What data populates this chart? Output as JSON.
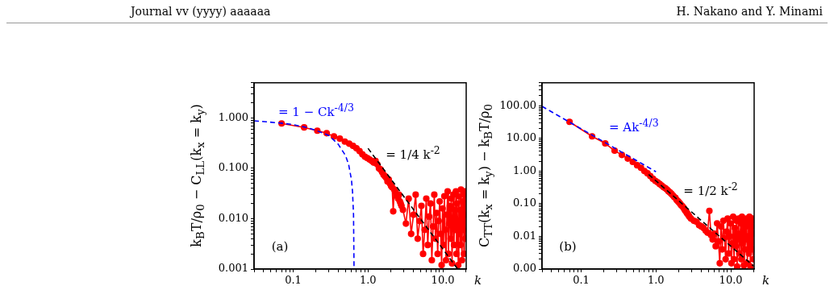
{
  "chart_data": [
    {
      "type": "other",
      "annotations": [
        "Journal vv (yyyy) aaaaaa",
        "H. Nakano and Y. Minami"
      ]
    },
    {
      "type": "line",
      "xlabel": "k",
      "ylabel": "k$_{B}$T/ρ$_{0}$ − C$_{LL}$(k$_{x}$ = k$_{y}$)",
      "log": "xy",
      "xlim": [
        0.03,
        20.5
      ],
      "ylim": [
        0.001,
        5
      ],
      "xticks": [
        {
          "value": 0.03,
          "label": null
        },
        {
          "value": 0.04,
          "label": null
        },
        {
          "value": 0.05,
          "label": null
        },
        {
          "value": 0.06,
          "label": null
        },
        {
          "value": 0.07,
          "label": null
        },
        {
          "value": 0.08,
          "label": null
        },
        {
          "value": 0.09,
          "label": null
        },
        {
          "value": 0.1,
          "label": "0.1"
        },
        {
          "value": 0.2,
          "label": null
        },
        {
          "value": 0.3,
          "label": null
        },
        {
          "value": 0.4,
          "label": null
        },
        {
          "value": 0.5,
          "label": null
        },
        {
          "value": 0.6,
          "label": null
        },
        {
          "value": 0.7,
          "label": null
        },
        {
          "value": 0.8,
          "label": null
        },
        {
          "value": 0.9,
          "label": null
        },
        {
          "value": 1,
          "label": "1.0"
        },
        {
          "value": 2,
          "label": null
        },
        {
          "value": 3,
          "label": null
        },
        {
          "value": 4,
          "label": null
        },
        {
          "value": 5,
          "label": null
        },
        {
          "value": 6,
          "label": null
        },
        {
          "value": 7,
          "label": null
        },
        {
          "value": 8,
          "label": null
        },
        {
          "value": 9,
          "label": null
        },
        {
          "value": 10,
          "label": "10.0"
        },
        {
          "value": 20,
          "label": null
        }
      ],
      "yticks": [
        {
          "value": 0.001,
          "label": "0.001"
        },
        {
          "value": 0.002,
          "label": null
        },
        {
          "value": 0.003,
          "label": null
        },
        {
          "value": 0.004,
          "label": null
        },
        {
          "value": 0.005,
          "label": null
        },
        {
          "value": 0.006,
          "label": null
        },
        {
          "value": 0.007,
          "label": null
        },
        {
          "value": 0.008,
          "label": null
        },
        {
          "value": 0.009,
          "label": null
        },
        {
          "value": 0.01,
          "label": "0.010"
        },
        {
          "value": 0.02,
          "label": null
        },
        {
          "value": 0.03,
          "label": null
        },
        {
          "value": 0.04,
          "label": null
        },
        {
          "value": 0.05,
          "label": null
        },
        {
          "value": 0.06,
          "label": null
        },
        {
          "value": 0.07,
          "label": null
        },
        {
          "value": 0.08,
          "label": null
        },
        {
          "value": 0.09,
          "label": null
        },
        {
          "value": 0.1,
          "label": "0.100"
        },
        {
          "value": 0.2,
          "label": null
        },
        {
          "value": 0.3,
          "label": null
        },
        {
          "value": 0.4,
          "label": null
        },
        {
          "value": 0.5,
          "label": null
        },
        {
          "value": 0.6,
          "label": null
        },
        {
          "value": 0.7,
          "label": null
        },
        {
          "value": 0.8,
          "label": null
        },
        {
          "value": 0.9,
          "label": null
        },
        {
          "value": 1,
          "label": "1.000"
        },
        {
          "value": 2,
          "label": null
        },
        {
          "value": 3,
          "label": null
        },
        {
          "value": 4,
          "label": null
        },
        {
          "value": 5,
          "label": null
        }
      ],
      "x": [
        0.07,
        0.14,
        0.21,
        0.28,
        0.35,
        0.42,
        0.49,
        0.56,
        0.63,
        0.7,
        0.77,
        0.84,
        0.91,
        0.98,
        1.05,
        1.12,
        1.19,
        1.26,
        1.33,
        1.4,
        1.47,
        1.54,
        1.61,
        1.68,
        1.75,
        1.82,
        1.89,
        1.96,
        2.03,
        2.1,
        2.17,
        2.24,
        2.31,
        2.38,
        2.45,
        2.52,
        2.59,
        2.66,
        2.73,
        2.8,
        2.93,
        3.21,
        3.49,
        3.77,
        4.05,
        4.33,
        4.61,
        4.89,
        5.17,
        5.44,
        5.72,
        6.0,
        6.28,
        6.56,
        6.84,
        7.12,
        7.4,
        7.68,
        7.96,
        8.24,
        8.52,
        8.79,
        9.07,
        9.35,
        9.63,
        9.91,
        10.19,
        10.47,
        10.75,
        11.03,
        11.31,
        11.59,
        11.87,
        12.15,
        12.42,
        12.7,
        12.98,
        13.26,
        13.54,
        13.82,
        14.1,
        14.38,
        14.66,
        14.94,
        15.22,
        15.5,
        15.77,
        16.05,
        16.33,
        16.61,
        16.89,
        17.17,
        17.45,
        17.73,
        18.01,
        18.29,
        18.57,
        18.85,
        19.13,
        19.4,
        19.68,
        19.96
      ],
      "series": [
        {
          "type": "line",
          "color": "#ff0000",
          "marker": "circle",
          "line_style": "solid",
          "values": [
            0.78,
            0.65,
            0.56,
            0.5,
            0.43,
            0.39,
            0.34,
            0.31,
            0.28,
            0.25,
            0.22,
            0.19,
            0.17,
            0.16,
            0.15,
            0.14,
            0.13,
            0.14,
            0.12,
            0.1,
            0.095,
            0.085,
            0.075,
            0.07,
            0.065,
            0.055,
            0.06,
            0.05,
            0.045,
            0.042,
            0.014,
            0.038,
            0.035,
            0.03,
            0.028,
            0.025,
            0.03,
            0.022,
            0.02,
            0.018,
            0.015,
            0.008,
            0.025,
            0.005,
            0.012,
            0.03,
            0.004,
            0.009,
            0.018,
            0.002,
            0.006,
            0.025,
            0.003,
            0.011,
            0.02,
            0.0015,
            0.007,
            0.03,
            0.004,
            0.013,
            0.002,
            0.009,
            0.022,
            0.005,
            0.0012,
            0.016,
            0.003,
            0.028,
            0.006,
            0.0015,
            0.012,
            0.035,
            0.002,
            0.008,
            0.018,
            0.004,
            0.025,
            0.0013,
            0.01,
            0.03,
            0.003,
            0.015,
            0.006,
            0.035,
            0.002,
            0.02,
            0.008,
            0.0012,
            0.028,
            0.005,
            0.015,
            0.003,
            0.038,
            0.009,
            0.0015,
            0.022,
            0.006,
            0.03,
            0.002,
            0.012,
            0.035,
            0.004
          ]
        },
        {
          "type": "line",
          "name": "= 1 − Ck$^{-4/3}$",
          "color": "#0000ff",
          "marker": "none",
          "line_style": "dashed",
          "x": [
            0.03,
            0.07,
            0.1,
            0.15,
            0.2,
            0.3,
            0.4,
            0.5,
            0.55,
            0.6,
            0.62,
            0.64,
            0.65
          ],
          "values": [
            0.88,
            0.79,
            0.74,
            0.65,
            0.57,
            0.45,
            0.3,
            0.18,
            0.12,
            0.06,
            0.035,
            0.012,
            0.001
          ]
        },
        {
          "type": "line",
          "name": "= 1/4 k$^{-2}$",
          "color": "#000000",
          "marker": "none",
          "line_style": "dashed",
          "x": [
            1.0,
            15.8
          ],
          "values": [
            0.25,
            0.001
          ]
        }
      ],
      "annotations": [
        "(a)"
      ]
    },
    {
      "type": "line",
      "xlabel": "k",
      "ylabel": "C$_{TT}$(k$_{x}$ = k$_{y}$) − k$_{B}$T/ρ$_{0}$",
      "log": "xy",
      "xlim": [
        0.03,
        20.5
      ],
      "ylim": [
        0.001,
        500
      ],
      "xticks": [
        {
          "value": 0.03,
          "label": null
        },
        {
          "value": 0.04,
          "label": null
        },
        {
          "value": 0.05,
          "label": null
        },
        {
          "value": 0.06,
          "label": null
        },
        {
          "value": 0.07,
          "label": null
        },
        {
          "value": 0.08,
          "label": null
        },
        {
          "value": 0.09,
          "label": null
        },
        {
          "value": 0.1,
          "label": "0.1"
        },
        {
          "value": 0.2,
          "label": null
        },
        {
          "value": 0.3,
          "label": null
        },
        {
          "value": 0.4,
          "label": null
        },
        {
          "value": 0.5,
          "label": null
        },
        {
          "value": 0.6,
          "label": null
        },
        {
          "value": 0.7,
          "label": null
        },
        {
          "value": 0.8,
          "label": null
        },
        {
          "value": 0.9,
          "label": null
        },
        {
          "value": 1,
          "label": "1.0"
        },
        {
          "value": 2,
          "label": null
        },
        {
          "value": 3,
          "label": null
        },
        {
          "value": 4,
          "label": null
        },
        {
          "value": 5,
          "label": null
        },
        {
          "value": 6,
          "label": null
        },
        {
          "value": 7,
          "label": null
        },
        {
          "value": 8,
          "label": null
        },
        {
          "value": 9,
          "label": null
        },
        {
          "value": 10,
          "label": "10.0"
        },
        {
          "value": 20,
          "label": null
        }
      ],
      "yticks": [
        {
          "value": 0.001,
          "label": "0.00"
        },
        {
          "value": 0.002,
          "label": null
        },
        {
          "value": 0.003,
          "label": null
        },
        {
          "value": 0.004,
          "label": null
        },
        {
          "value": 0.005,
          "label": null
        },
        {
          "value": 0.006,
          "label": null
        },
        {
          "value": 0.007,
          "label": null
        },
        {
          "value": 0.008,
          "label": null
        },
        {
          "value": 0.009,
          "label": null
        },
        {
          "value": 0.01,
          "label": "0.01"
        },
        {
          "value": 0.02,
          "label": null
        },
        {
          "value": 0.03,
          "label": null
        },
        {
          "value": 0.04,
          "label": null
        },
        {
          "value": 0.05,
          "label": null
        },
        {
          "value": 0.06,
          "label": null
        },
        {
          "value": 0.07,
          "label": null
        },
        {
          "value": 0.08,
          "label": null
        },
        {
          "value": 0.09,
          "label": null
        },
        {
          "value": 0.1,
          "label": "0.10"
        },
        {
          "value": 0.2,
          "label": null
        },
        {
          "value": 0.3,
          "label": null
        },
        {
          "value": 0.4,
          "label": null
        },
        {
          "value": 0.5,
          "label": null
        },
        {
          "value": 0.6,
          "label": null
        },
        {
          "value": 0.7,
          "label": null
        },
        {
          "value": 0.8,
          "label": null
        },
        {
          "value": 0.9,
          "label": null
        },
        {
          "value": 1,
          "label": "1.00"
        },
        {
          "value": 2,
          "label": null
        },
        {
          "value": 3,
          "label": null
        },
        {
          "value": 4,
          "label": null
        },
        {
          "value": 5,
          "label": null
        },
        {
          "value": 6,
          "label": null
        },
        {
          "value": 7,
          "label": null
        },
        {
          "value": 8,
          "label": null
        },
        {
          "value": 9,
          "label": null
        },
        {
          "value": 10,
          "label": "10.00"
        },
        {
          "value": 20,
          "label": null
        },
        {
          "value": 30,
          "label": null
        },
        {
          "value": 40,
          "label": null
        },
        {
          "value": 50,
          "label": null
        },
        {
          "value": 60,
          "label": null
        },
        {
          "value": 70,
          "label": null
        },
        {
          "value": 80,
          "label": null
        },
        {
          "value": 90,
          "label": null
        },
        {
          "value": 100,
          "label": "100.00"
        },
        {
          "value": 200,
          "label": null
        },
        {
          "value": 300,
          "label": null
        },
        {
          "value": 400,
          "label": null
        },
        {
          "value": 500,
          "label": null
        }
      ],
      "x": [
        0.07,
        0.14,
        0.21,
        0.28,
        0.35,
        0.42,
        0.49,
        0.56,
        0.63,
        0.7,
        0.77,
        0.84,
        0.91,
        0.98,
        1.05,
        1.12,
        1.19,
        1.26,
        1.33,
        1.4,
        1.47,
        1.54,
        1.61,
        1.68,
        1.75,
        1.82,
        1.89,
        1.96,
        2.03,
        2.1,
        2.17,
        2.24,
        2.31,
        2.38,
        2.45,
        2.52,
        2.59,
        2.66,
        2.73,
        2.8,
        2.93,
        3.21,
        3.49,
        3.77,
        4.05,
        4.33,
        4.61,
        4.89,
        5.17,
        5.44,
        5.72,
        6.0,
        6.28,
        6.56,
        6.84,
        7.12,
        7.4,
        7.68,
        7.96,
        8.24,
        8.52,
        8.79,
        9.07,
        9.35,
        9.63,
        9.91,
        10.19,
        10.47,
        10.75,
        11.03,
        11.31,
        11.59,
        11.87,
        12.15,
        12.42,
        12.7,
        12.98,
        13.26,
        13.54,
        13.82,
        14.1,
        14.38,
        14.66,
        14.94,
        15.22,
        15.5,
        15.77,
        16.05,
        16.33,
        16.61,
        16.89,
        17.17,
        17.45,
        17.73,
        18.01,
        18.29,
        18.57,
        18.85,
        19.13,
        19.4,
        19.68,
        19.96
      ],
      "series": [
        {
          "type": "line",
          "color": "#ff0000",
          "marker": "circle",
          "line_style": "solid",
          "values": [
            32,
            11.5,
            7.0,
            4.2,
            3.1,
            2.4,
            1.9,
            1.5,
            1.25,
            1.0,
            0.85,
            0.7,
            0.58,
            0.5,
            0.45,
            0.4,
            0.36,
            0.32,
            0.3,
            0.27,
            0.24,
            0.22,
            0.2,
            0.18,
            0.16,
            0.15,
            0.13,
            0.12,
            0.11,
            0.1,
            0.09,
            0.085,
            0.078,
            0.07,
            0.062,
            0.058,
            0.052,
            0.048,
            0.044,
            0.04,
            0.035,
            0.03,
            0.028,
            0.022,
            0.02,
            0.018,
            0.015,
            0.013,
            0.06,
            0.011,
            0.008,
            0.012,
            0.005,
            0.025,
            0.007,
            0.0015,
            0.02,
            0.004,
            0.03,
            0.009,
            0.002,
            0.014,
            0.035,
            0.003,
            0.01,
            0.025,
            0.0015,
            0.006,
            0.04,
            0.002,
            0.018,
            0.005,
            0.03,
            0.0012,
            0.012,
            0.035,
            0.003,
            0.008,
            0.025,
            0.002,
            0.04,
            0.006,
            0.015,
            0.0013,
            0.03,
            0.004,
            0.02,
            0.008,
            0.035,
            0.0015,
            0.01,
            0.025,
            0.003,
            0.04,
            0.006,
            0.0012,
            0.02,
            0.03,
            0.004,
            0.012,
            0.035,
            0.002
          ]
        },
        {
          "type": "line",
          "name": "= Ak$^{-4/3}$",
          "color": "#0000ff",
          "marker": "none",
          "line_style": "dashed",
          "x": [
            0.03,
            1.0
          ],
          "values": [
            95,
            0.95
          ]
        },
        {
          "type": "line",
          "name": "= 1/2 k$^{-2}$",
          "color": "#000000",
          "marker": "none",
          "line_style": "dashed",
          "x": [
            0.8,
            20
          ],
          "values": [
            0.78,
            0.00125
          ]
        }
      ],
      "annotations": [
        "(b)"
      ]
    }
  ]
}
